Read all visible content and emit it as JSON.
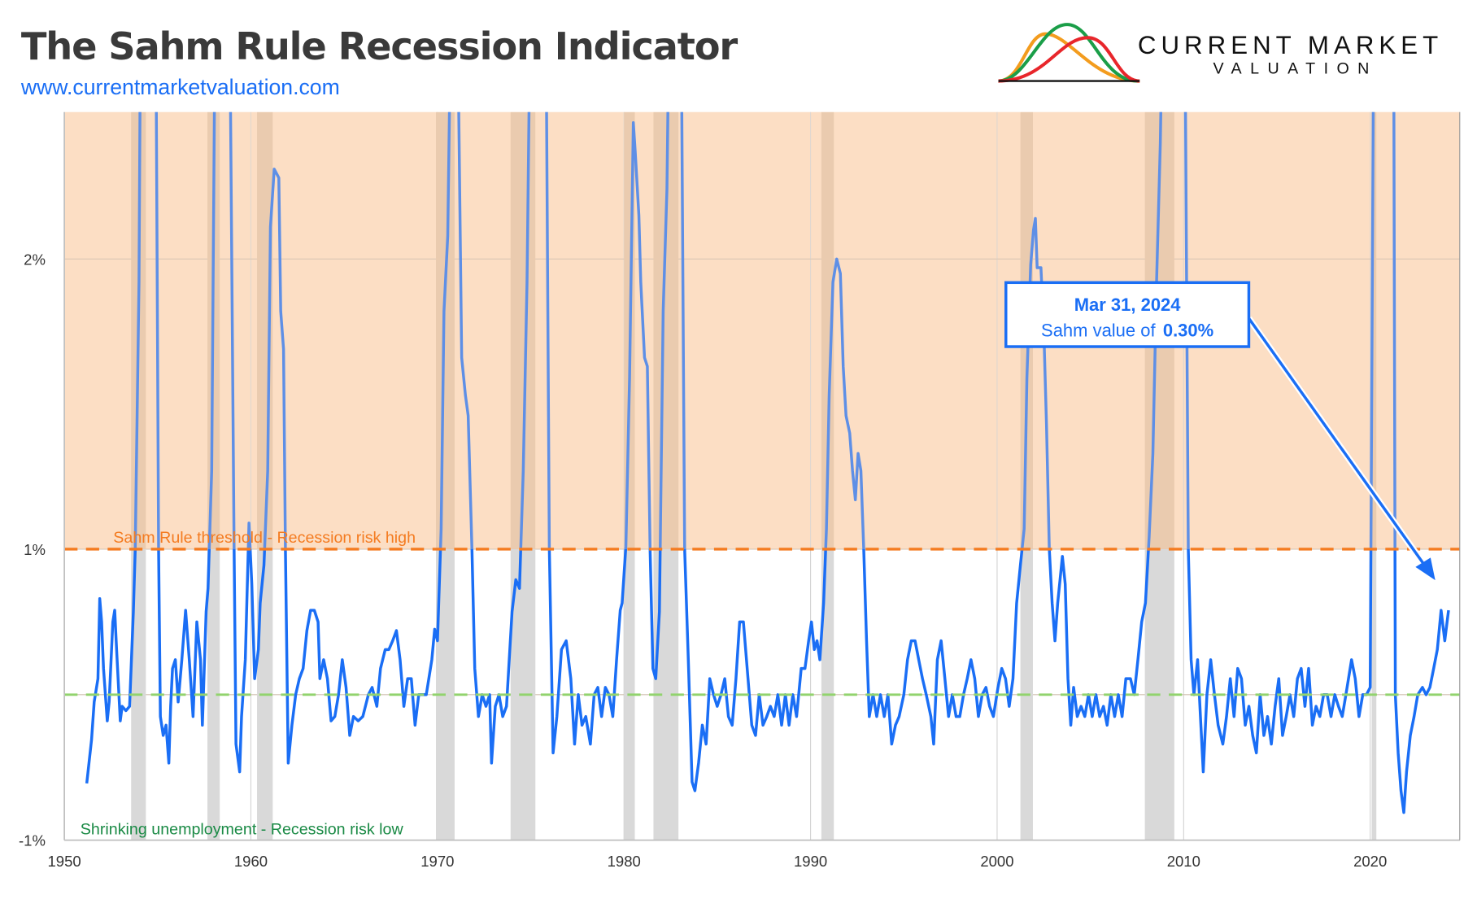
{
  "header": {
    "title": "The Sahm Rule Recession Indicator",
    "url": "www.currentmarketvaluation.com",
    "logo": {
      "line1": "CURRENT MARKET",
      "line2": "VALUATION"
    }
  },
  "callout": {
    "date": "Mar 31, 2024",
    "label": "Sahm value of",
    "value": "0.30%"
  },
  "colors": {
    "series": "#1a6ef5",
    "risk_zone": "#fddfc4",
    "recession_band": "#d9d9d9",
    "threshold": "#f47b20",
    "low_line": "#92d36e",
    "low_text": "#1a8a45"
  },
  "chart_data": {
    "type": "line",
    "title": "The Sahm Rule Recession Indicator",
    "xlim": [
      1950,
      2024.8
    ],
    "ylim": [
      -1,
      2.5
    ],
    "x_ticks": [
      1950,
      1960,
      1970,
      1980,
      1990,
      2000,
      2010,
      2020
    ],
    "x_tick_labels": [
      "1950",
      "1960",
      "1970",
      "1980",
      "1990",
      "2000",
      "2010",
      "2020"
    ],
    "y_ticks": [
      -1,
      1,
      2
    ],
    "y_tick_labels": [
      "-1%",
      "1%",
      "2%"
    ],
    "grid": true,
    "annotations": {
      "threshold": {
        "value": 1,
        "label": "Sahm Rule threshold - Recession risk high"
      },
      "low": {
        "value": 0,
        "label": "Shrinking unemployment - Recession risk low"
      }
    },
    "recessions": [
      [
        1953.58,
        1954.37
      ],
      [
        1957.67,
        1958.33
      ],
      [
        1960.33,
        1961.17
      ],
      [
        1969.92,
        1970.92
      ],
      [
        1973.92,
        1975.25
      ],
      [
        1980.0,
        1980.58
      ],
      [
        1981.58,
        1982.92
      ],
      [
        1990.58,
        1991.25
      ],
      [
        2001.25,
        2001.92
      ],
      [
        2007.92,
        2009.5
      ],
      [
        2020.08,
        2020.33
      ]
    ],
    "x": [
      1951.2,
      1951.46,
      1951.6,
      1951.8,
      1951.9,
      1952.0,
      1952.1,
      1952.3,
      1952.4,
      1952.6,
      1952.7,
      1952.8,
      1953.0,
      1953.1,
      1953.3,
      1953.5,
      1953.7,
      1953.8,
      1954.0,
      1954.1,
      1954.9,
      1955.05,
      1955.15,
      1955.3,
      1955.45,
      1955.6,
      1955.7,
      1955.8,
      1955.95,
      1956.1,
      1956.3,
      1956.5,
      1956.7,
      1956.9,
      1957.1,
      1957.3,
      1957.4,
      1957.6,
      1957.7,
      1957.9,
      1958.1,
      1958.85,
      1959.1,
      1959.2,
      1959.4,
      1959.5,
      1959.7,
      1959.9,
      1960.05,
      1960.2,
      1960.4,
      1960.5,
      1960.7,
      1960.9,
      1961.05,
      1961.25,
      1961.5,
      1961.6,
      1961.75,
      1961.85,
      1962.0,
      1962.2,
      1962.4,
      1962.6,
      1962.8,
      1963.0,
      1963.2,
      1963.4,
      1963.6,
      1963.7,
      1963.9,
      1964.1,
      1964.3,
      1964.5,
      1964.7,
      1964.9,
      1965.1,
      1965.3,
      1965.5,
      1965.75,
      1966.0,
      1966.3,
      1966.5,
      1966.75,
      1966.95,
      1967.2,
      1967.4,
      1967.6,
      1967.8,
      1968.0,
      1968.2,
      1968.4,
      1968.6,
      1968.8,
      1969.0,
      1969.4,
      1969.7,
      1969.85,
      1970.0,
      1970.2,
      1970.35,
      1970.55,
      1970.75,
      1971.05,
      1971.3,
      1971.5,
      1971.65,
      1971.85,
      1972.0,
      1972.2,
      1972.4,
      1972.6,
      1972.8,
      1972.9,
      1973.1,
      1973.3,
      1973.5,
      1973.7,
      1974.0,
      1974.2,
      1974.4,
      1974.6,
      1974.8,
      1975.0,
      1975.8,
      1976.0,
      1976.2,
      1976.4,
      1976.65,
      1976.9,
      1977.15,
      1977.35,
      1977.55,
      1977.75,
      1977.95,
      1978.2,
      1978.4,
      1978.6,
      1978.8,
      1979.0,
      1979.2,
      1979.4,
      1979.6,
      1979.8,
      1979.9,
      1980.1,
      1980.3,
      1980.5,
      1980.6,
      1980.8,
      1980.9,
      1981.1,
      1981.25,
      1981.4,
      1981.55,
      1981.7,
      1981.9,
      1982.1,
      1982.3,
      1982.45,
      1983.05,
      1983.25,
      1983.45,
      1983.65,
      1983.8,
      1984.0,
      1984.2,
      1984.4,
      1984.6,
      1984.8,
      1985.0,
      1985.2,
      1985.4,
      1985.6,
      1985.8,
      1986.0,
      1986.2,
      1986.4,
      1986.65,
      1986.85,
      1987.05,
      1987.25,
      1987.45,
      1987.65,
      1987.85,
      1988.05,
      1988.25,
      1988.45,
      1988.65,
      1988.85,
      1989.05,
      1989.25,
      1989.5,
      1989.7,
      1989.9,
      1990.05,
      1990.2,
      1990.35,
      1990.5,
      1990.7,
      1990.85,
      1991.0,
      1991.2,
      1991.4,
      1991.6,
      1991.75,
      1991.9,
      1992.1,
      1992.25,
      1992.4,
      1992.55,
      1992.7,
      1992.85,
      1993.0,
      1993.15,
      1993.35,
      1993.55,
      1993.75,
      1993.95,
      1994.15,
      1994.35,
      1994.55,
      1994.75,
      1995.0,
      1995.2,
      1995.4,
      1995.6,
      1995.8,
      1996.0,
      1996.2,
      1996.45,
      1996.6,
      1996.8,
      1997.0,
      1997.2,
      1997.4,
      1997.6,
      1997.8,
      1998.0,
      1998.2,
      1998.4,
      1998.6,
      1998.8,
      1999.0,
      1999.2,
      1999.4,
      1999.6,
      1999.8,
      2000.05,
      2000.25,
      2000.45,
      2000.65,
      2000.85,
      2001.05,
      2001.25,
      2001.45,
      2001.6,
      2001.8,
      2001.95,
      2002.05,
      2002.15,
      2002.35,
      2002.5,
      2002.65,
      2002.8,
      2002.95,
      2003.1,
      2003.25,
      2003.5,
      2003.65,
      2003.8,
      2003.95,
      2004.1,
      2004.3,
      2004.5,
      2004.7,
      2004.9,
      2005.1,
      2005.3,
      2005.5,
      2005.7,
      2005.9,
      2006.1,
      2006.3,
      2006.5,
      2006.7,
      2006.9,
      2007.15,
      2007.35,
      2007.55,
      2007.75,
      2007.95,
      2008.15,
      2008.35,
      2008.55,
      2008.75,
      2008.9,
      2010.05,
      2010.25,
      2010.4,
      2010.55,
      2010.75,
      2010.9,
      2011.05,
      2011.25,
      2011.45,
      2011.65,
      2011.85,
      2012.1,
      2012.3,
      2012.5,
      2012.7,
      2012.9,
      2013.1,
      2013.3,
      2013.5,
      2013.7,
      2013.9,
      2014.1,
      2014.3,
      2014.5,
      2014.7,
      2014.9,
      2015.1,
      2015.3,
      2015.5,
      2015.7,
      2015.9,
      2016.1,
      2016.3,
      2016.5,
      2016.7,
      2016.9,
      2017.1,
      2017.3,
      2017.5,
      2017.7,
      2017.9,
      2018.1,
      2018.3,
      2018.5,
      2018.7,
      2019.0,
      2019.2,
      2019.4,
      2019.6,
      2019.8,
      2020.0,
      2020.2,
      2021.25,
      2021.35,
      2021.5,
      2021.65,
      2021.8,
      2021.95,
      2022.15,
      2022.35,
      2022.55,
      2022.8,
      2023.0,
      2023.2,
      2023.4,
      2023.6,
      2023.8,
      2024.0,
      2024.2
    ],
    "y": [
      -0.61,
      -0.31,
      -0.05,
      0.11,
      0.66,
      0.5,
      0.18,
      -0.18,
      -0.05,
      0.5,
      0.58,
      0.31,
      -0.18,
      -0.08,
      -0.11,
      -0.08,
      0.57,
      1.0,
      1.92,
      3.0,
      2.9,
      1.0,
      -0.15,
      -0.28,
      -0.21,
      -0.47,
      -0.08,
      0.18,
      0.24,
      -0.05,
      0.24,
      0.58,
      0.24,
      -0.15,
      0.5,
      0.24,
      -0.21,
      0.57,
      0.73,
      1.27,
      3.0,
      3.0,
      1.0,
      -0.34,
      -0.53,
      -0.15,
      0.24,
      1.09,
      0.76,
      0.11,
      0.31,
      0.63,
      0.89,
      1.27,
      2.11,
      2.31,
      2.28,
      1.82,
      1.69,
      1.0,
      -0.47,
      -0.21,
      0,
      0.11,
      0.18,
      0.44,
      0.58,
      0.58,
      0.5,
      0.11,
      0.24,
      0.11,
      -0.18,
      -0.15,
      0,
      0.24,
      0.05,
      -0.28,
      -0.15,
      -0.18,
      -0.15,
      0,
      0.05,
      -0.08,
      0.18,
      0.31,
      0.31,
      0.37,
      0.44,
      0.24,
      -0.08,
      0.11,
      0.11,
      -0.21,
      0,
      0,
      0.24,
      0.45,
      0.37,
      1.07,
      1.82,
      2.08,
      3.0,
      3.0,
      1.66,
      1.53,
      1.46,
      1.0,
      0.18,
      -0.15,
      0,
      -0.08,
      0,
      -0.47,
      -0.08,
      0,
      -0.15,
      -0.08,
      0.57,
      0.79,
      0.73,
      1.27,
      1.92,
      3.0,
      3.0,
      1.0,
      -0.4,
      -0.15,
      0.31,
      0.37,
      0.11,
      -0.34,
      0,
      -0.21,
      -0.15,
      -0.34,
      0,
      0.05,
      -0.15,
      0.05,
      0,
      -0.15,
      0.24,
      0.58,
      0.63,
      1.01,
      1.59,
      2.47,
      2.37,
      2.15,
      1.92,
      1.66,
      1.63,
      1.0,
      0.18,
      0.11,
      0.57,
      1.82,
      2.24,
      3.0,
      3.0,
      1.0,
      0.24,
      -0.6,
      -0.66,
      -0.47,
      -0.21,
      -0.34,
      0.11,
      0,
      -0.08,
      0,
      0.11,
      -0.15,
      -0.21,
      0.11,
      0.5,
      0.5,
      0.11,
      -0.21,
      -0.28,
      0,
      -0.21,
      -0.15,
      -0.08,
      -0.15,
      0,
      -0.21,
      0,
      -0.21,
      0,
      -0.15,
      0.18,
      0.18,
      0.37,
      0.5,
      0.31,
      0.37,
      0.24,
      0.63,
      1.07,
      1.53,
      1.92,
      2.0,
      1.95,
      1.63,
      1.46,
      1.4,
      1.27,
      1.17,
      1.33,
      1.27,
      1.0,
      0.37,
      -0.15,
      0,
      -0.15,
      0,
      -0.15,
      0,
      -0.34,
      -0.21,
      -0.15,
      0,
      0.24,
      0.37,
      0.37,
      0.24,
      0.11,
      0,
      -0.15,
      -0.34,
      0.24,
      0.37,
      0.11,
      -0.15,
      0,
      -0.15,
      -0.15,
      0,
      0.11,
      0.24,
      0.11,
      -0.15,
      0,
      0.05,
      -0.08,
      -0.15,
      0.05,
      0.18,
      0.11,
      -0.08,
      0.11,
      0.63,
      0.89,
      1.07,
      1.59,
      1.98,
      2.1,
      2.14,
      1.97,
      1.97,
      1.76,
      1.43,
      1.0,
      0.63,
      0.37,
      0.63,
      0.95,
      0.76,
      0.11,
      -0.21,
      0.05,
      -0.15,
      -0.08,
      -0.15,
      0,
      -0.15,
      0,
      -0.15,
      -0.08,
      -0.21,
      0,
      -0.15,
      0,
      -0.15,
      0.11,
      0.11,
      0,
      0.24,
      0.5,
      0.63,
      1.04,
      1.33,
      1.92,
      2.4,
      3.0,
      3.0,
      1.0,
      0.24,
      0,
      0.24,
      -0.15,
      -0.53,
      0,
      0.24,
      0,
      -0.21,
      -0.34,
      -0.15,
      0.11,
      -0.15,
      0.18,
      0.11,
      -0.21,
      -0.08,
      -0.28,
      -0.4,
      0,
      -0.28,
      -0.15,
      -0.34,
      -0.08,
      0.11,
      -0.28,
      -0.15,
      0,
      -0.15,
      0.11,
      0.18,
      -0.08,
      0.18,
      -0.21,
      -0.08,
      -0.15,
      0,
      0,
      -0.15,
      0,
      -0.08,
      -0.15,
      0,
      0.24,
      0.11,
      -0.15,
      0,
      0,
      0.05,
      3.0,
      3.0,
      0,
      -0.4,
      -0.66,
      -0.81,
      -0.53,
      -0.28,
      -0.15,
      0,
      0.05,
      0,
      0.05,
      0.18,
      0.31,
      0.58,
      0.37,
      0.58
    ]
  }
}
